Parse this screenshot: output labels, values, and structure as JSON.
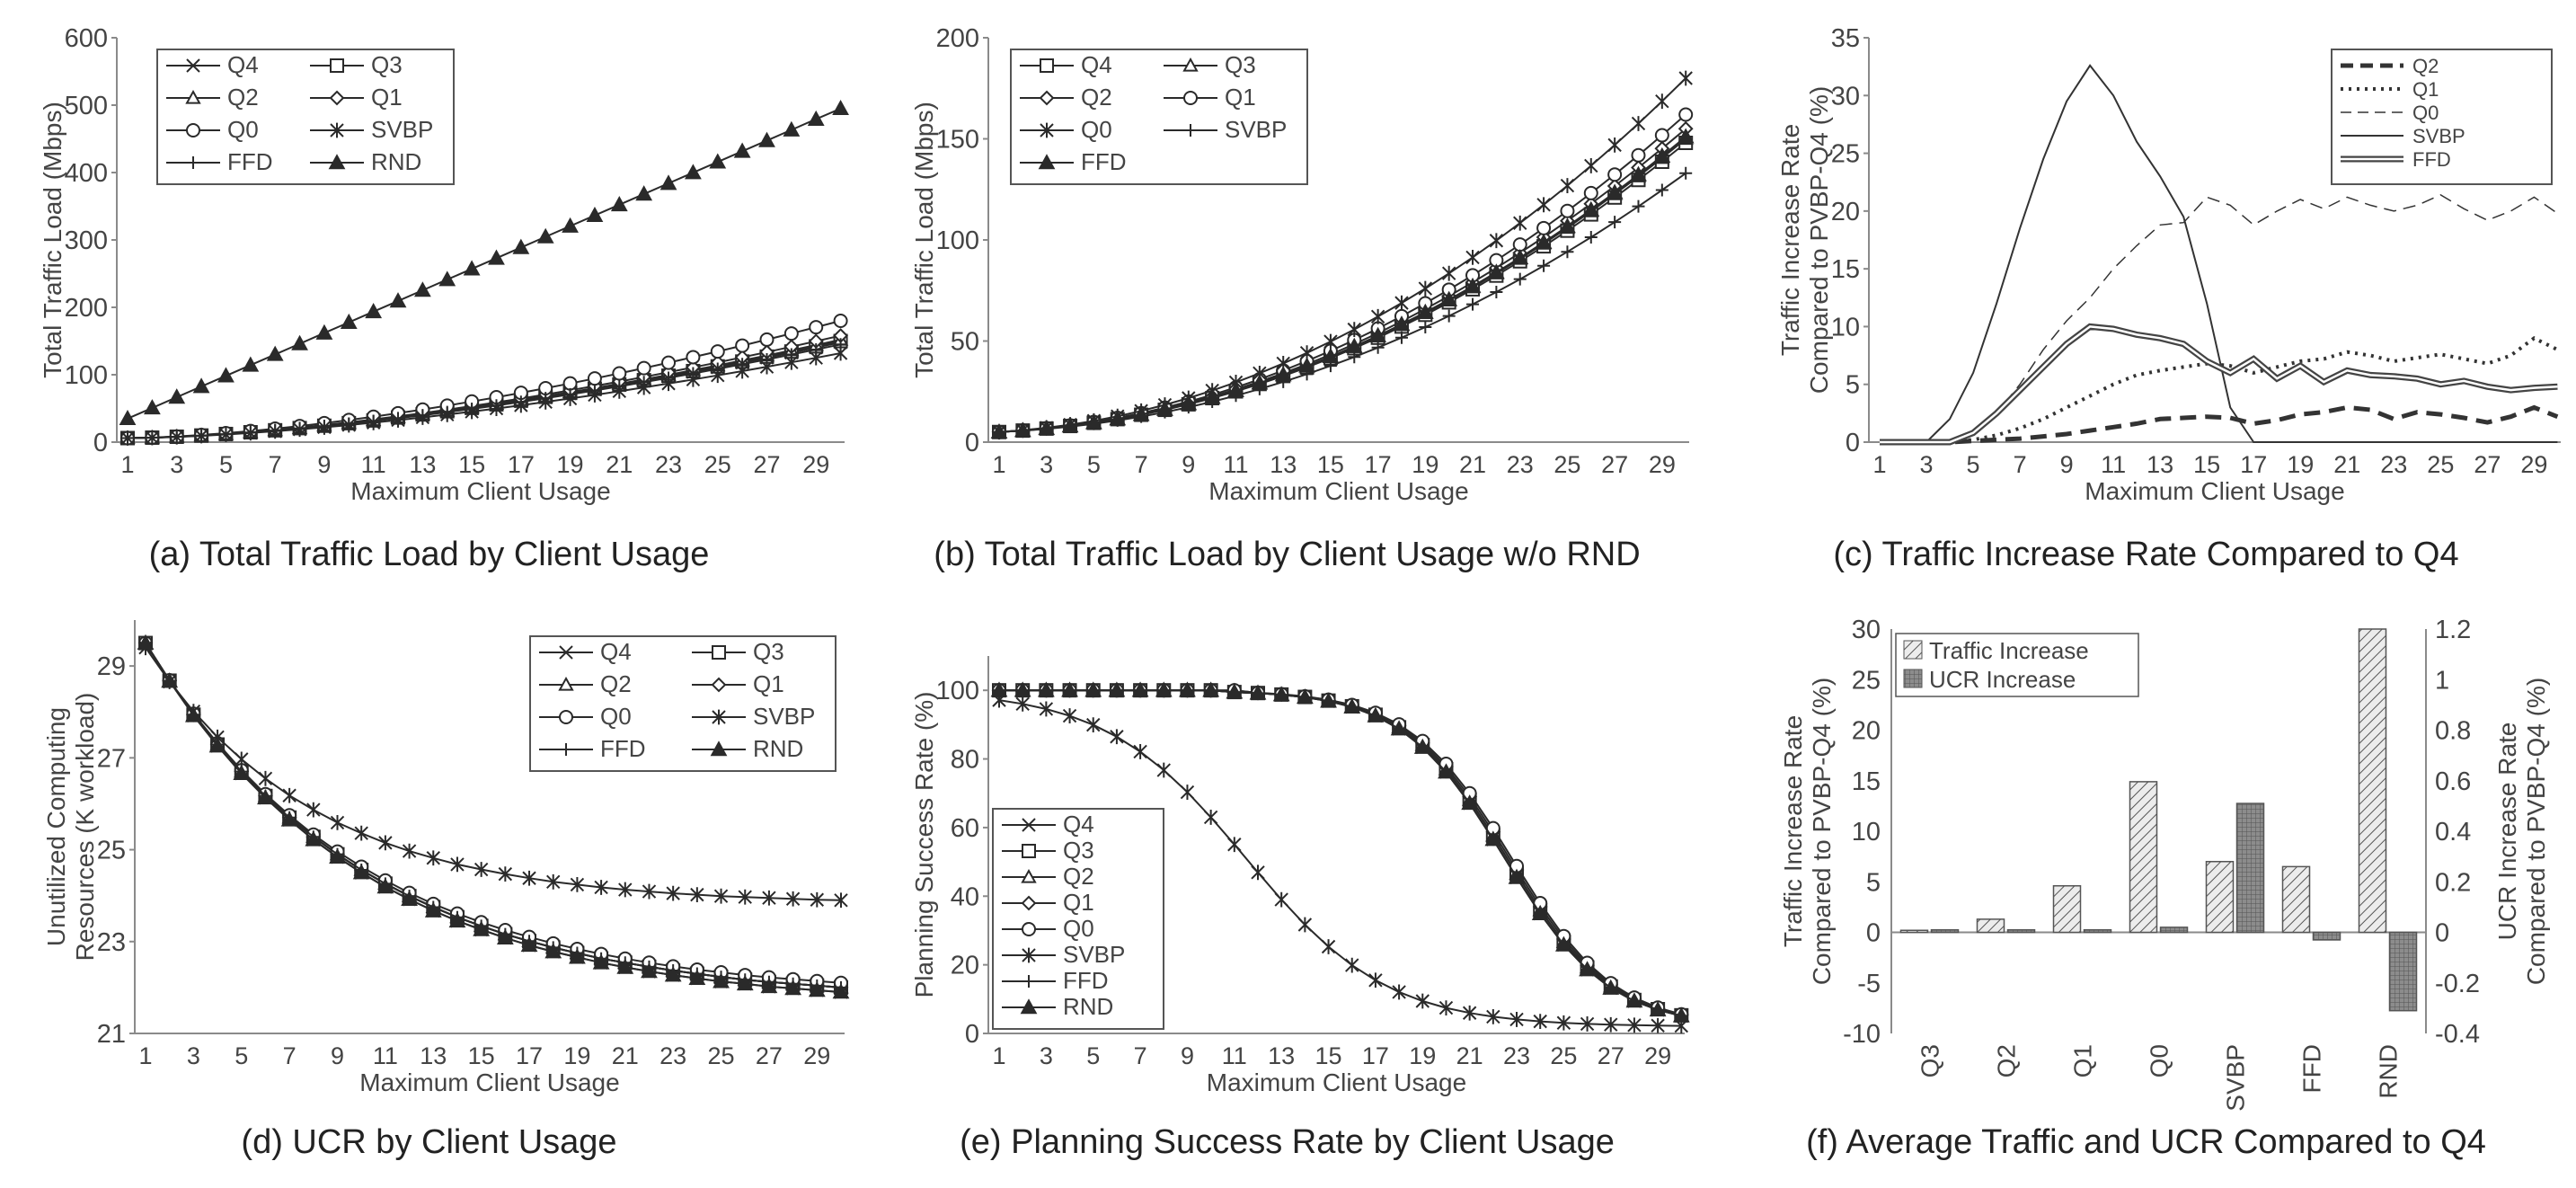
{
  "colors": {
    "axis": "#8a8a8a",
    "text": "#444444",
    "series": "#2a2a2a",
    "hatch_bar": "#bdbdbd",
    "grid_bar": "#8c8c8c"
  },
  "charts": [
    {
      "id": "a",
      "type": "line",
      "caption": "(a) Total Traffic Load by Client Usage",
      "ylabel": "Total Traffic Load (Mbps)",
      "xlabel": "Maximum Client Usage",
      "xlim": [
        1,
        30
      ],
      "ylim": [
        0,
        600
      ],
      "yticks": [
        0,
        100,
        200,
        300,
        400,
        500,
        600
      ],
      "xticks": [
        1,
        3,
        5,
        7,
        9,
        11,
        13,
        15,
        17,
        19,
        21,
        23,
        25,
        27,
        29
      ],
      "legend_position": "top-left",
      "series": [
        {
          "name": "Q4",
          "marker": "x",
          "start": 6,
          "end": 148,
          "curve": "ramp"
        },
        {
          "name": "Q3",
          "marker": "square",
          "start": 6,
          "end": 150,
          "curve": "ramp"
        },
        {
          "name": "Q2",
          "marker": "triangle",
          "start": 6,
          "end": 152,
          "curve": "ramp"
        },
        {
          "name": "Q1",
          "marker": "diamond",
          "start": 6,
          "end": 158,
          "curve": "ramp"
        },
        {
          "name": "Q0",
          "marker": "circle",
          "start": 6,
          "end": 180,
          "curve": "ramp"
        },
        {
          "name": "SVBP",
          "marker": "star",
          "start": 6,
          "end": 132,
          "curve": "ramp"
        },
        {
          "name": "FFD",
          "marker": "plus",
          "start": 6,
          "end": 145,
          "curve": "ramp"
        },
        {
          "name": "RND",
          "marker": "filltri",
          "start": 35,
          "end": 495,
          "curve": "linear"
        }
      ]
    },
    {
      "id": "b",
      "type": "line",
      "caption": "(b) Total Traffic Load by Client Usage w/o RND",
      "ylabel": "Total Traffic Load (Mbps)",
      "xlabel": "Maximum Client Usage",
      "xlim": [
        1,
        30
      ],
      "ylim": [
        0,
        200
      ],
      "yticks": [
        0,
        50,
        100,
        150,
        200
      ],
      "xticks": [
        1,
        3,
        5,
        7,
        9,
        11,
        13,
        15,
        17,
        19,
        21,
        23,
        25,
        27,
        29
      ],
      "legend_position": "top-left",
      "series": [
        {
          "name": "Q4",
          "marker": "square",
          "start": 5,
          "end": 148,
          "curve": "s"
        },
        {
          "name": "Q3",
          "marker": "triangle",
          "start": 5,
          "end": 150,
          "curve": "s"
        },
        {
          "name": "Q2",
          "marker": "diamond",
          "start": 5,
          "end": 155,
          "curve": "s"
        },
        {
          "name": "Q1",
          "marker": "circle",
          "start": 5,
          "end": 162,
          "curve": "s"
        },
        {
          "name": "Q0",
          "marker": "star",
          "start": 5,
          "end": 180,
          "curve": "s"
        },
        {
          "name": "SVBP",
          "marker": "plus",
          "start": 5,
          "end": 133,
          "curve": "s"
        },
        {
          "name": "FFD",
          "marker": "filltri",
          "start": 5,
          "end": 151,
          "curve": "s"
        }
      ]
    },
    {
      "id": "c",
      "type": "line",
      "caption": "(c) Traffic Increase Rate Compared to Q4",
      "ylabel": "Traffic Increase Rate Compared to PVBP-Q4 (%)",
      "xlabel": "Maximum Client Usage",
      "xlim": [
        1,
        30
      ],
      "ylim": [
        0,
        35
      ],
      "yticks": [
        0,
        5,
        10,
        15,
        20,
        25,
        30,
        35
      ],
      "xticks": [
        1,
        3,
        5,
        7,
        9,
        11,
        13,
        15,
        17,
        19,
        21,
        23,
        25,
        27,
        29
      ],
      "legend_position": "top-right",
      "series": [
        {
          "name": "Q2",
          "style": "dashbold",
          "values": [
            0,
            0,
            0,
            0,
            0.1,
            0.2,
            0.3,
            0.5,
            0.7,
            1.0,
            1.3,
            1.6,
            2.0,
            2.1,
            2.2,
            2.1,
            1.6,
            1.9,
            2.4,
            2.6,
            3.0,
            2.8,
            2.0,
            2.6,
            2.4,
            2.1,
            1.7,
            2.2,
            3.0,
            2.2
          ]
        },
        {
          "name": "Q1",
          "style": "dotted",
          "values": [
            0,
            0,
            0,
            0,
            0.2,
            0.6,
            1.2,
            2.0,
            3.0,
            4.0,
            5.0,
            5.8,
            6.2,
            6.5,
            6.8,
            6.6,
            6.0,
            6.5,
            7.0,
            7.2,
            7.8,
            7.5,
            7.0,
            7.3,
            7.6,
            7.2,
            6.8,
            7.5,
            9.0,
            8.0
          ]
        },
        {
          "name": "Q0",
          "style": "thindash",
          "values": [
            0,
            0,
            0,
            0,
            0.8,
            2.5,
            5.0,
            8.0,
            10.5,
            12.5,
            15.0,
            17.0,
            18.8,
            19.0,
            21.2,
            20.5,
            18.8,
            20.0,
            21.0,
            20.2,
            21.2,
            20.5,
            20.0,
            20.5,
            21.4,
            20.2,
            19.2,
            20.0,
            21.2,
            19.8
          ]
        },
        {
          "name": "SVBP",
          "style": "solid",
          "values": [
            0,
            0,
            0,
            2.0,
            6.0,
            12.0,
            18.5,
            24.5,
            29.5,
            32.6,
            30.0,
            26.0,
            23.0,
            19.5,
            12.0,
            3.0,
            0,
            0,
            0,
            0,
            0,
            0,
            0,
            0,
            0,
            0,
            0,
            0,
            0,
            0
          ]
        },
        {
          "name": "FFD",
          "style": "double",
          "values": [
            0,
            0,
            0,
            0,
            0.8,
            2.5,
            4.5,
            6.5,
            8.5,
            10.0,
            9.8,
            9.3,
            9.0,
            8.5,
            7.0,
            6.0,
            7.2,
            5.5,
            6.6,
            5.2,
            6.2,
            5.8,
            5.7,
            5.5,
            5.0,
            5.3,
            4.8,
            4.5,
            4.7,
            4.8
          ]
        }
      ]
    },
    {
      "id": "d",
      "type": "line",
      "caption": "(d) UCR by Client Usage",
      "ylabel": "Unutilized Computing Resources (K workload)",
      "xlabel": "Maximum Client Usage",
      "xlim": [
        1,
        30
      ],
      "ylim": [
        21,
        30
      ],
      "yticks": [
        21,
        23,
        25,
        27,
        29
      ],
      "xticks": [
        1,
        3,
        5,
        7,
        9,
        11,
        13,
        15,
        17,
        19,
        21,
        23,
        25,
        27,
        29
      ],
      "legend_position": "top-right",
      "series": [
        {
          "name": "Q4",
          "marker": "x",
          "start": 29.5,
          "end": 21.9,
          "curve": "decay"
        },
        {
          "name": "Q3",
          "marker": "square",
          "start": 29.5,
          "end": 22.0,
          "curve": "decay"
        },
        {
          "name": "Q2",
          "marker": "triangle",
          "start": 29.5,
          "end": 22.0,
          "curve": "decay"
        },
        {
          "name": "Q1",
          "marker": "diamond",
          "start": 29.5,
          "end": 22.0,
          "curve": "decay"
        },
        {
          "name": "Q0",
          "marker": "circle",
          "start": 29.5,
          "end": 22.1,
          "curve": "decay"
        },
        {
          "name": "SVBP",
          "marker": "star",
          "start": 29.4,
          "end": 23.9,
          "curve": "decay"
        },
        {
          "name": "FFD",
          "marker": "plus",
          "start": 29.5,
          "end": 22.0,
          "curve": "decay"
        },
        {
          "name": "RND",
          "marker": "filltri",
          "start": 29.5,
          "end": 21.9,
          "curve": "decay"
        }
      ]
    },
    {
      "id": "e",
      "type": "line",
      "caption": "(e) Planning Success Rate by Client Usage",
      "ylabel": "Planning Success Rate (%)",
      "xlabel": "Maximum Client Usage",
      "xlim": [
        1,
        30
      ],
      "ylim": [
        0,
        110
      ],
      "yticks": [
        0,
        20,
        40,
        60,
        80,
        100
      ],
      "xticks": [
        1,
        3,
        5,
        7,
        9,
        11,
        13,
        15,
        17,
        19,
        21,
        23,
        25,
        27,
        29
      ],
      "legend_position": "bottom-left",
      "series": [
        {
          "name": "Q4",
          "marker": "x",
          "center": 22.5,
          "slope": 2.2
        },
        {
          "name": "Q3",
          "marker": "square",
          "center": 22.6,
          "slope": 2.2
        },
        {
          "name": "Q2",
          "marker": "triangle",
          "center": 22.6,
          "slope": 2.2
        },
        {
          "name": "Q1",
          "marker": "diamond",
          "center": 22.7,
          "slope": 2.2
        },
        {
          "name": "Q0",
          "marker": "circle",
          "center": 22.8,
          "slope": 2.2
        },
        {
          "name": "SVBP",
          "marker": "star",
          "center": 11.5,
          "slope": 3.0
        },
        {
          "name": "FFD",
          "marker": "plus",
          "center": 22.5,
          "slope": 2.2
        },
        {
          "name": "RND",
          "marker": "filltri",
          "center": 22.5,
          "slope": 2.2
        }
      ]
    },
    {
      "id": "f",
      "type": "bar",
      "caption": "(f) Average Traffic  and UCR Compared to Q4",
      "ylabel": "Traffic Increase Rate Compared to PVBP-Q4 (%)",
      "ylabel2": "UCR Increase Rate Compared to PVBP-Q4 (%)",
      "categories": [
        "Q3",
        "Q2",
        "Q1",
        "Q0",
        "SVBP",
        "FFD",
        "RND"
      ],
      "ylim": [
        -10,
        30
      ],
      "yticks": [
        -10,
        -5,
        0,
        5,
        10,
        15,
        20,
        25,
        30
      ],
      "ylim2": [
        -0.4,
        1.2
      ],
      "yticks2": [
        "-0.4",
        "-0.2",
        "0",
        "0.2",
        "0.4",
        "0.6",
        "0.8",
        "1",
        "1.2"
      ],
      "legend_position": "top-left",
      "series": [
        {
          "name": "Traffic Increase",
          "axis": "left",
          "fill": "hatch",
          "values": [
            0.2,
            1.3,
            4.6,
            14.9,
            7.0,
            6.5,
            30
          ]
        },
        {
          "name": "UCR Increase",
          "axis": "right",
          "fill": "grid",
          "values": [
            0.01,
            0.01,
            0.01,
            0.02,
            0.51,
            -0.03,
            -0.31
          ]
        }
      ]
    }
  ]
}
